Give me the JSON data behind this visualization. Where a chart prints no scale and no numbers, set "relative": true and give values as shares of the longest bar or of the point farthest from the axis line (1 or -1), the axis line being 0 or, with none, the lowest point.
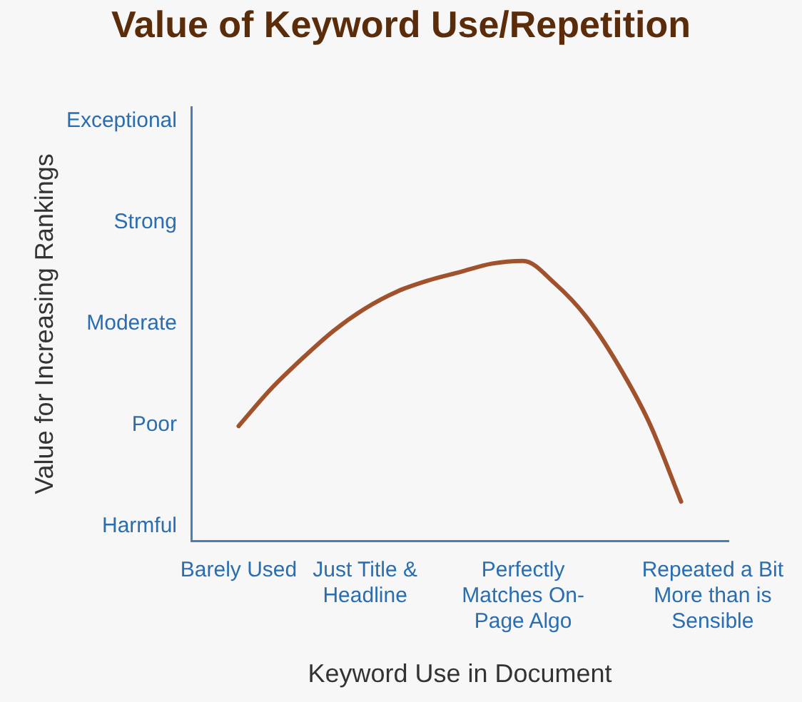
{
  "chart_data": {
    "type": "line",
    "title": "Value of Keyword Use/Repetition",
    "xlabel": "Keyword Use in Document",
    "ylabel": "Value for Increasing Rankings",
    "categories": [
      null,
      "Barely Used",
      null,
      null,
      null,
      "Just Title & Headline",
      null,
      null,
      null,
      null,
      "Perfectly Matches On-Page Algo",
      null,
      null,
      null,
      null,
      null,
      "Repeated a Bit More than is Sensible"
    ],
    "series": [
      {
        "color": "#a0522d",
        "values": [
          null,
          0.41,
          0.54,
          0.65,
          0.75,
          0.83,
          0.89,
          0.93,
          0.96,
          0.99,
          1,
          0.92,
          0.8,
          0.63,
          0.42,
          0.14,
          null
        ]
      }
    ],
    "relative": true,
    "annotations": [
      "Harmful",
      "Poor",
      "Moderate",
      "Strong",
      "Exceptional"
    ],
    "grid": false,
    "legend": false,
    "marker": "none",
    "line_style": "solid"
  }
}
